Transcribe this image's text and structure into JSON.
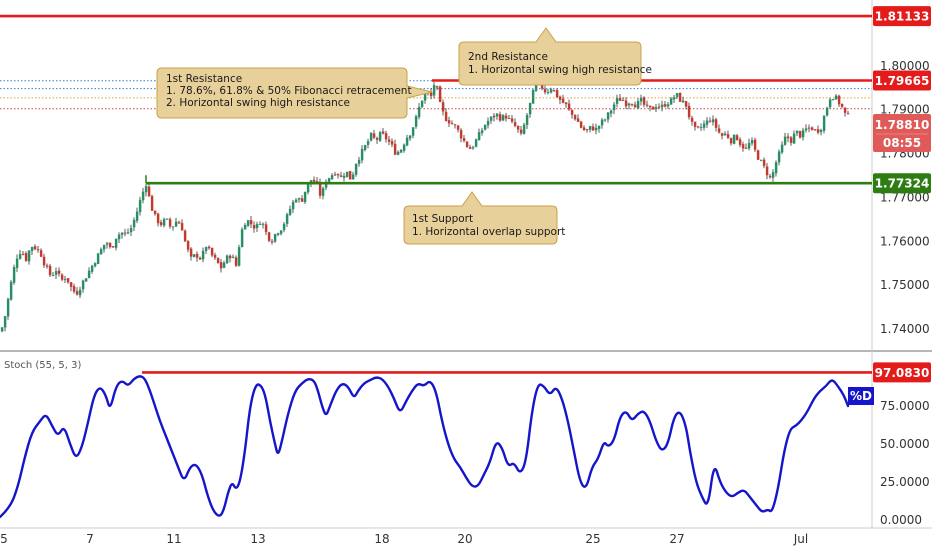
{
  "chart_data": {
    "type": "candlestick",
    "price_ylim": [
      1.735,
      1.815
    ],
    "price_ticks": [
      "1.80000",
      "1.79000",
      "1.78000",
      "1.77000",
      "1.76000",
      "1.75000",
      "1.74000"
    ],
    "price_tick_values": [
      1.8,
      1.79,
      1.78,
      1.77,
      1.76,
      1.75,
      1.74
    ],
    "x_tick_labels": [
      "5",
      "7",
      "11",
      "13",
      "18",
      "20",
      "25",
      "27",
      "Jul"
    ],
    "levels": [
      {
        "name": "third-resistance",
        "value": 1.81133,
        "label": "1.81133",
        "color": "#e31b1b"
      },
      {
        "name": "second-resistance",
        "value": 1.79665,
        "label": "1.79665",
        "color": "#e31b1b"
      },
      {
        "name": "first-support",
        "value": 1.77324,
        "label": "1.77324",
        "color": "#2e7d12"
      }
    ],
    "current_price": {
      "value": 1.7881,
      "label": "1.78810",
      "countdown": "08:55",
      "color": "#e05a5a"
    },
    "dotted_levels": [
      1.7966,
      1.7948,
      1.7927,
      1.7902
    ],
    "callouts": [
      {
        "title": "1st Resistance",
        "lines": [
          "1. 78.6%, 61.8% & 50% Fibonacci retracement",
          "2. Horizontal swing high resistance"
        ]
      },
      {
        "title": "2nd Resistance",
        "lines": [
          "1. Horizontal swing high resistance"
        ]
      },
      {
        "title": "1st Support",
        "lines": [
          "1. Horizontal overlap support"
        ]
      }
    ],
    "close_path": [
      [
        0,
        1.7395
      ],
      [
        4,
        1.743
      ],
      [
        8,
        1.748
      ],
      [
        12,
        1.753
      ],
      [
        16,
        1.7565
      ],
      [
        20,
        1.758
      ],
      [
        25,
        1.756
      ],
      [
        30,
        1.759
      ],
      [
        35,
        1.7585
      ],
      [
        40,
        1.757
      ],
      [
        45,
        1.754
      ],
      [
        50,
        1.752
      ],
      [
        55,
        1.7535
      ],
      [
        60,
        1.751
      ],
      [
        65,
        1.752
      ],
      [
        70,
        1.7495
      ],
      [
        75,
        1.748
      ],
      [
        80,
        1.75
      ],
      [
        85,
        1.752
      ],
      [
        90,
        1.754
      ],
      [
        95,
        1.756
      ],
      [
        100,
        1.758
      ],
      [
        105,
        1.76
      ],
      [
        110,
        1.758
      ],
      [
        115,
        1.761
      ],
      [
        120,
        1.762
      ],
      [
        125,
        1.7615
      ],
      [
        130,
        1.763
      ],
      [
        135,
        1.766
      ],
      [
        140,
        1.77
      ],
      [
        145,
        1.7732
      ],
      [
        150,
        1.768
      ],
      [
        155,
        1.765
      ],
      [
        160,
        1.764
      ],
      [
        165,
        1.765
      ],
      [
        170,
        1.763
      ],
      [
        175,
        1.7645
      ],
      [
        180,
        1.764
      ],
      [
        185,
        1.759
      ],
      [
        190,
        1.756
      ],
      [
        195,
        1.757
      ],
      [
        200,
        1.756
      ],
      [
        205,
        1.759
      ],
      [
        210,
        1.757
      ],
      [
        215,
        1.7555
      ],
      [
        220,
        1.754
      ],
      [
        225,
        1.756
      ],
      [
        230,
        1.757
      ],
      [
        235,
        1.7545
      ],
      [
        240,
        1.762
      ],
      [
        245,
        1.765
      ],
      [
        250,
        1.764
      ],
      [
        255,
        1.763
      ],
      [
        260,
        1.765
      ],
      [
        265,
        1.762
      ],
      [
        270,
        1.76
      ],
      [
        275,
        1.762
      ],
      [
        280,
        1.763
      ],
      [
        285,
        1.765
      ],
      [
        290,
        1.768
      ],
      [
        295,
        1.77
      ],
      [
        300,
        1.769
      ],
      [
        305,
        1.772
      ],
      [
        310,
        1.774
      ],
      [
        315,
        1.7735
      ],
      [
        320,
        1.77
      ],
      [
        325,
        1.774
      ],
      [
        330,
        1.775
      ],
      [
        335,
        1.776
      ],
      [
        340,
        1.7745
      ],
      [
        345,
        1.776
      ],
      [
        350,
        1.774
      ],
      [
        355,
        1.778
      ],
      [
        360,
        1.78
      ],
      [
        365,
        1.782
      ],
      [
        370,
        1.784
      ],
      [
        375,
        1.783
      ],
      [
        380,
        1.7845
      ],
      [
        385,
        1.7835
      ],
      [
        390,
        1.782
      ],
      [
        395,
        1.78
      ],
      [
        400,
        1.781
      ],
      [
        405,
        1.7835
      ],
      [
        410,
        1.785
      ],
      [
        415,
        1.788
      ],
      [
        420,
        1.792
      ],
      [
        425,
        1.794
      ],
      [
        430,
        1.793
      ],
      [
        434,
        1.7966
      ],
      [
        440,
        1.79
      ],
      [
        445,
        1.788
      ],
      [
        450,
        1.787
      ],
      [
        455,
        1.786
      ],
      [
        460,
        1.784
      ],
      [
        465,
        1.782
      ],
      [
        470,
        1.781
      ],
      [
        475,
        1.783
      ],
      [
        480,
        1.785
      ],
      [
        485,
        1.787
      ],
      [
        490,
        1.788
      ],
      [
        495,
        1.789
      ],
      [
        500,
        1.788
      ],
      [
        505,
        1.7885
      ],
      [
        510,
        1.787
      ],
      [
        515,
        1.786
      ],
      [
        520,
        1.784
      ],
      [
        525,
        1.788
      ],
      [
        530,
        1.792
      ],
      [
        535,
        1.7966
      ],
      [
        540,
        1.7955
      ],
      [
        545,
        1.794
      ],
      [
        550,
        1.795
      ],
      [
        555,
        1.7935
      ],
      [
        560,
        1.792
      ],
      [
        565,
        1.791
      ],
      [
        570,
        1.789
      ],
      [
        575,
        1.788
      ],
      [
        580,
        1.786
      ],
      [
        585,
        1.785
      ],
      [
        590,
        1.786
      ],
      [
        595,
        1.7855
      ],
      [
        600,
        1.787
      ],
      [
        605,
        1.788
      ],
      [
        610,
        1.79
      ],
      [
        615,
        1.792
      ],
      [
        620,
        1.7925
      ],
      [
        625,
        1.7915
      ],
      [
        630,
        1.792
      ],
      [
        635,
        1.791
      ],
      [
        640,
        1.792
      ],
      [
        645,
        1.7905
      ],
      [
        650,
        1.79
      ],
      [
        655,
        1.791
      ],
      [
        660,
        1.7905
      ],
      [
        665,
        1.7915
      ],
      [
        670,
        1.792
      ],
      [
        675,
        1.7935
      ],
      [
        680,
        1.792
      ],
      [
        685,
        1.791
      ],
      [
        690,
        1.787
      ],
      [
        695,
        1.785
      ],
      [
        700,
        1.786
      ],
      [
        705,
        1.787
      ],
      [
        710,
        1.788
      ],
      [
        715,
        1.786
      ],
      [
        720,
        1.784
      ],
      [
        725,
        1.7845
      ],
      [
        730,
        1.783
      ],
      [
        735,
        1.784
      ],
      [
        740,
        1.782
      ],
      [
        745,
        1.781
      ],
      [
        750,
        1.783
      ],
      [
        755,
        1.78
      ],
      [
        760,
        1.778
      ],
      [
        765,
        1.776
      ],
      [
        770,
        1.774
      ],
      [
        775,
        1.778
      ],
      [
        780,
        1.781
      ],
      [
        785,
        1.784
      ],
      [
        790,
        1.783
      ],
      [
        795,
        1.785
      ],
      [
        800,
        1.784
      ],
      [
        805,
        1.7855
      ],
      [
        810,
        1.786
      ],
      [
        815,
        1.785
      ],
      [
        820,
        1.786
      ],
      [
        825,
        1.79
      ],
      [
        830,
        1.7935
      ],
      [
        835,
        1.7925
      ],
      [
        840,
        1.791
      ],
      [
        845,
        1.7885
      ]
    ],
    "indicator": {
      "name": "Stoch (55, 5, 3)",
      "ylim": [
        0,
        100
      ],
      "ticks": [
        "97.0830",
        "75.0000",
        "50.0000",
        "25.0000",
        "0.0000"
      ],
      "tick_values": [
        97.083,
        75,
        50,
        25,
        0
      ],
      "level": {
        "value": 97.083,
        "label": "97.0830",
        "color": "#e31b1b"
      },
      "series_label": "%D",
      "series_color": "#1515cc",
      "values": [
        [
          0,
          2
        ],
        [
          10,
          8
        ],
        [
          18,
          22
        ],
        [
          25,
          42
        ],
        [
          32,
          58
        ],
        [
          40,
          65
        ],
        [
          46,
          70
        ],
        [
          52,
          62
        ],
        [
          58,
          55
        ],
        [
          64,
          62
        ],
        [
          70,
          50
        ],
        [
          76,
          40
        ],
        [
          82,
          48
        ],
        [
          88,
          64
        ],
        [
          94,
          82
        ],
        [
          100,
          88
        ],
        [
          106,
          82
        ],
        [
          110,
          72
        ],
        [
          116,
          88
        ],
        [
          122,
          92
        ],
        [
          128,
          88
        ],
        [
          134,
          93
        ],
        [
          140,
          95
        ],
        [
          145,
          93
        ],
        [
          150,
          85
        ],
        [
          155,
          75
        ],
        [
          160,
          65
        ],
        [
          166,
          55
        ],
        [
          172,
          45
        ],
        [
          178,
          35
        ],
        [
          184,
          25
        ],
        [
          190,
          35
        ],
        [
          196,
          37
        ],
        [
          202,
          30
        ],
        [
          208,
          15
        ],
        [
          214,
          5
        ],
        [
          220,
          2
        ],
        [
          224,
          7
        ],
        [
          228,
          18
        ],
        [
          232,
          25
        ],
        [
          236,
          20
        ],
        [
          240,
          25
        ],
        [
          245,
          45
        ],
        [
          250,
          75
        ],
        [
          256,
          90
        ],
        [
          262,
          88
        ],
        [
          266,
          80
        ],
        [
          270,
          65
        ],
        [
          275,
          50
        ],
        [
          278,
          42
        ],
        [
          282,
          52
        ],
        [
          288,
          70
        ],
        [
          295,
          85
        ],
        [
          302,
          90
        ],
        [
          308,
          93
        ],
        [
          314,
          92
        ],
        [
          318,
          85
        ],
        [
          322,
          75
        ],
        [
          326,
          68
        ],
        [
          330,
          75
        ],
        [
          336,
          85
        ],
        [
          342,
          90
        ],
        [
          348,
          88
        ],
        [
          354,
          80
        ],
        [
          358,
          85
        ],
        [
          364,
          90
        ],
        [
          370,
          92
        ],
        [
          376,
          94
        ],
        [
          382,
          93
        ],
        [
          388,
          88
        ],
        [
          394,
          80
        ],
        [
          400,
          70
        ],
        [
          406,
          78
        ],
        [
          412,
          85
        ],
        [
          418,
          90
        ],
        [
          424,
          88
        ],
        [
          430,
          92
        ],
        [
          436,
          85
        ],
        [
          442,
          65
        ],
        [
          448,
          50
        ],
        [
          454,
          40
        ],
        [
          460,
          35
        ],
        [
          466,
          28
        ],
        [
          472,
          22
        ],
        [
          478,
          22
        ],
        [
          484,
          30
        ],
        [
          490,
          38
        ],
        [
          496,
          52
        ],
        [
          502,
          48
        ],
        [
          508,
          35
        ],
        [
          514,
          38
        ],
        [
          520,
          30
        ],
        [
          526,
          38
        ],
        [
          532,
          72
        ],
        [
          538,
          90
        ],
        [
          544,
          88
        ],
        [
          550,
          82
        ],
        [
          556,
          88
        ],
        [
          562,
          80
        ],
        [
          568,
          65
        ],
        [
          574,
          45
        ],
        [
          580,
          25
        ],
        [
          586,
          20
        ],
        [
          592,
          35
        ],
        [
          598,
          40
        ],
        [
          604,
          52
        ],
        [
          608,
          48
        ],
        [
          614,
          52
        ],
        [
          620,
          68
        ],
        [
          626,
          72
        ],
        [
          632,
          65
        ],
        [
          638,
          70
        ],
        [
          644,
          72
        ],
        [
          650,
          65
        ],
        [
          656,
          52
        ],
        [
          662,
          45
        ],
        [
          668,
          50
        ],
        [
          674,
          68
        ],
        [
          680,
          72
        ],
        [
          686,
          62
        ],
        [
          690,
          45
        ],
        [
          696,
          25
        ],
        [
          702,
          15
        ],
        [
          708,
          8
        ],
        [
          714,
          38
        ],
        [
          720,
          25
        ],
        [
          726,
          18
        ],
        [
          732,
          15
        ],
        [
          738,
          18
        ],
        [
          744,
          20
        ],
        [
          750,
          15
        ],
        [
          756,
          10
        ],
        [
          762,
          5
        ],
        [
          768,
          7
        ],
        [
          772,
          5
        ],
        [
          778,
          20
        ],
        [
          784,
          45
        ],
        [
          790,
          60
        ],
        [
          796,
          62
        ],
        [
          802,
          66
        ],
        [
          808,
          72
        ],
        [
          814,
          80
        ],
        [
          820,
          85
        ],
        [
          826,
          88
        ],
        [
          832,
          93
        ],
        [
          838,
          88
        ],
        [
          844,
          82
        ],
        [
          848,
          75
        ]
      ]
    }
  }
}
